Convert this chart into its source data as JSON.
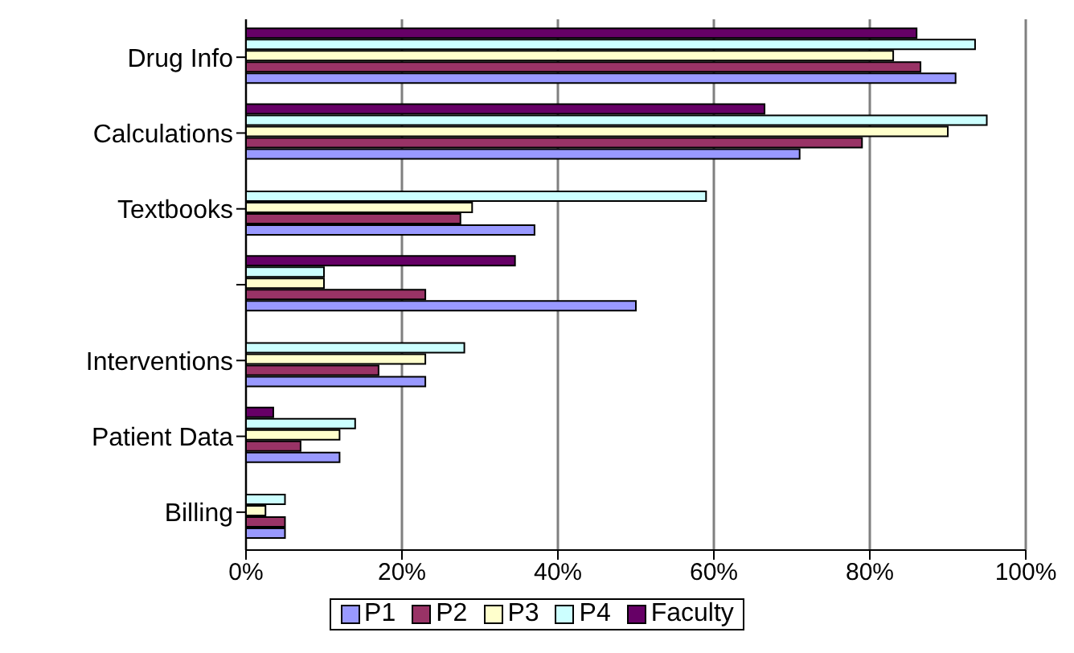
{
  "chart_data": {
    "type": "bar",
    "orientation": "horizontal",
    "categories": [
      "Drug Info",
      "Calculations",
      "Textbooks",
      null,
      "Interventions",
      "Patient Data",
      "Billing"
    ],
    "series": [
      {
        "name": "P1",
        "color": "#9999ff",
        "values": [
          91,
          71,
          37,
          50,
          23,
          12,
          5
        ]
      },
      {
        "name": "P2",
        "color": "#993366",
        "values": [
          86.5,
          79,
          27.5,
          23,
          17,
          7,
          5
        ]
      },
      {
        "name": "P3",
        "color": "#ffffcc",
        "values": [
          83,
          90,
          29,
          10,
          23,
          12,
          2.5
        ]
      },
      {
        "name": "P4",
        "color": "#ccffff",
        "values": [
          93.5,
          95,
          59,
          10,
          28,
          14,
          5
        ]
      },
      {
        "name": "Faculty",
        "color": "#660066",
        "values": [
          86,
          66.5,
          null,
          34.5,
          null,
          3.5,
          null
        ]
      }
    ],
    "xlim": [
      0,
      100
    ],
    "xticks": [
      {
        "value": 0,
        "label": "0%"
      },
      {
        "value": 20,
        "label": "20%"
      },
      {
        "value": 40,
        "label": "40%"
      },
      {
        "value": 60,
        "label": "60%"
      },
      {
        "value": 80,
        "label": "80%"
      },
      {
        "value": 100,
        "label": "100%"
      }
    ],
    "grid": "x",
    "legend": "bottom"
  }
}
